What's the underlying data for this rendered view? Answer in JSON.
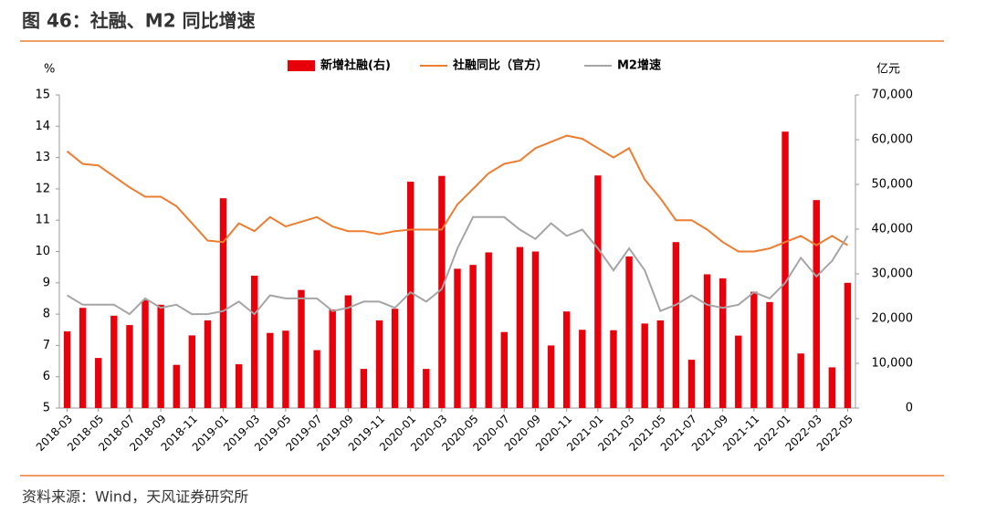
{
  "chart_data": {
    "type": "bar_line",
    "title": "图 46：社融、M2 同比增速",
    "source": "资料来源：Wind，天风证券研究所",
    "ylabel": "%",
    "y2label": "亿元",
    "categories": [
      "2018-03",
      null,
      "2018-05",
      null,
      "2018-07",
      null,
      "2018-09",
      null,
      "2018-11",
      null,
      "2019-01",
      null,
      "2019-03",
      null,
      "2019-05",
      null,
      "2019-07",
      null,
      "2019-09",
      null,
      "2019-11",
      null,
      "2020-01",
      null,
      "2020-03",
      null,
      "2020-05",
      null,
      "2020-07",
      null,
      "2020-09",
      null,
      "2020-11",
      null,
      "2021-01",
      null,
      "2021-03",
      null,
      "2021-05",
      null,
      "2021-07",
      null,
      "2021-09",
      null,
      "2021-11",
      null,
      "2022-01",
      null,
      "2022-03",
      null,
      "2022-05"
    ],
    "ylim": [
      5,
      15
    ],
    "yticks": [
      5,
      6,
      7,
      8,
      9,
      10,
      11,
      12,
      13,
      14,
      15
    ],
    "y2lim": [
      0,
      70000
    ],
    "y2ticks": [
      0,
      {
        "value": 10000,
        "label": "10,000"
      },
      {
        "value": 20000,
        "label": "20,000"
      },
      {
        "value": 30000,
        "label": "30,000"
      },
      {
        "value": 40000,
        "label": "40,000"
      },
      {
        "value": 50000,
        "label": "50,000"
      },
      {
        "value": 60000,
        "label": "60,000"
      },
      {
        "value": 70000,
        "label": "70,000"
      }
    ],
    "series": [
      {
        "name": "新增社融(右)",
        "type": "bar",
        "axis": "y2",
        "color": "#e8000b",
        "values": [
          17150,
          22400,
          11200,
          20650,
          18550,
          24150,
          23100,
          9660,
          16240,
          19600,
          46900,
          9800,
          29600,
          16800,
          17300,
          26400,
          12950,
          22050,
          25200,
          8750,
          19600,
          22200,
          50600,
          8750,
          51900,
          31150,
          32000,
          34800,
          17000,
          36000,
          35000,
          14000,
          21600,
          17500,
          52000,
          17400,
          33900,
          18900,
          19600,
          37100,
          10800,
          29900,
          29000,
          16200,
          26000,
          23700,
          61800,
          12200,
          46500,
          9100,
          28000
        ]
      },
      {
        "name": "社融同比（官方）",
        "type": "line",
        "color": "#ed7d31",
        "values": [
          13.2,
          12.8,
          12.75,
          12.4,
          12.05,
          11.75,
          11.75,
          11.45,
          10.9,
          10.35,
          10.3,
          10.9,
          10.65,
          11.1,
          10.8,
          10.95,
          11.1,
          10.8,
          10.65,
          10.65,
          10.55,
          10.65,
          10.7,
          10.7,
          10.7,
          11.5,
          12.0,
          12.5,
          12.8,
          12.9,
          13.3,
          13.5,
          13.7,
          13.6,
          13.3,
          13.0,
          13.3,
          12.3,
          11.7,
          11.0,
          11.0,
          10.7,
          10.3,
          10.0,
          10.0,
          10.1,
          10.3,
          10.5,
          10.2,
          10.5,
          10.2
        ]
      },
      {
        "name": "M2增速",
        "type": "line",
        "color": "#a5a5a5",
        "values": [
          8.6,
          8.3,
          8.3,
          8.3,
          8.0,
          8.5,
          8.2,
          8.3,
          8.0,
          8.0,
          8.1,
          8.4,
          8.0,
          8.6,
          8.5,
          8.5,
          8.5,
          8.1,
          8.2,
          8.4,
          8.4,
          8.2,
          8.7,
          8.4,
          8.8,
          10.1,
          11.1,
          11.1,
          11.1,
          10.7,
          10.4,
          10.9,
          10.5,
          10.7,
          10.1,
          9.4,
          10.1,
          9.4,
          8.1,
          8.3,
          8.6,
          8.3,
          8.2,
          8.3,
          8.7,
          8.5,
          9.0,
          9.8,
          9.2,
          9.7,
          10.5
        ]
      }
    ]
  }
}
